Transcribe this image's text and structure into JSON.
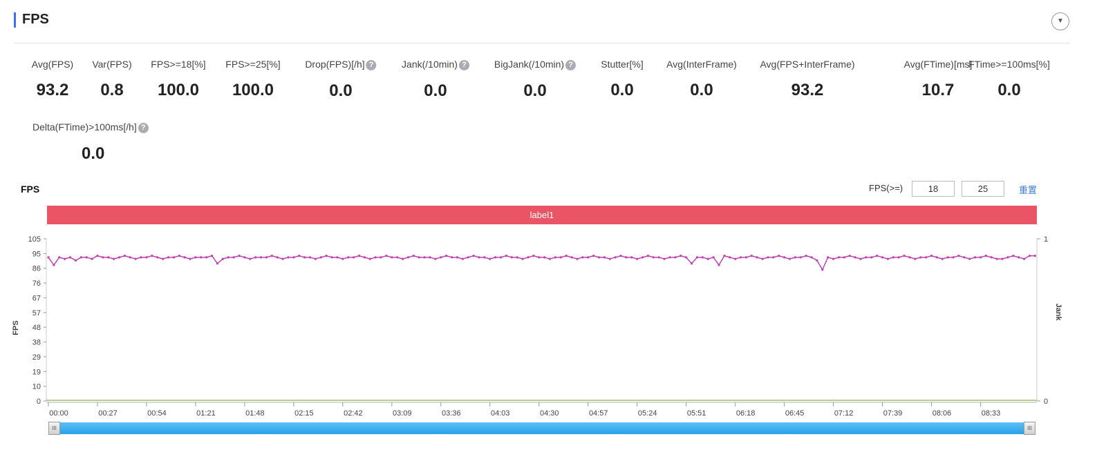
{
  "header": {
    "title": "FPS",
    "collapse_icon": "chevron-down-icon"
  },
  "metrics": [
    {
      "label": "Avg(FPS)",
      "value": "93.2",
      "help": false
    },
    {
      "label": "Var(FPS)",
      "value": "0.8",
      "help": false
    },
    {
      "label": "FPS>=18[%]",
      "value": "100.0",
      "help": false
    },
    {
      "label": "FPS>=25[%]",
      "value": "100.0",
      "help": false
    },
    {
      "label": "Drop(FPS)[/h]",
      "value": "0.0",
      "help": true
    },
    {
      "label": "Jank(/10min)",
      "value": "0.0",
      "help": true
    },
    {
      "label": "BigJank(/10min)",
      "value": "0.0",
      "help": true
    },
    {
      "label": "Stutter[%]",
      "value": "0.0",
      "help": false
    },
    {
      "label": "Avg(InterFrame)",
      "value": "0.0",
      "help": false
    },
    {
      "label": "Avg(FPS+InterFrame)",
      "value": "93.2",
      "help": false
    },
    {
      "label": "Avg(FTime)[ms]",
      "value": "10.7",
      "help": false
    },
    {
      "label": "FTime>=100ms[%]",
      "value": "0.0",
      "help": false
    },
    {
      "label": "Delta(FTime)>100ms[/h]",
      "value": "0.0",
      "help": true
    }
  ],
  "help_glyph": "?",
  "chart_header": {
    "title": "FPS",
    "threshold_label": "FPS(>=)",
    "threshold1": "18",
    "threshold2": "25",
    "reset_label": "重置"
  },
  "label_bar": {
    "text": "label1",
    "color": "#ea5565"
  },
  "chart_data": {
    "type": "line",
    "ylabel": "FPS",
    "y2label": "Jank",
    "ylim": [
      0,
      105
    ],
    "y2lim": [
      0,
      1
    ],
    "yticks": [
      "105",
      "95",
      "86",
      "76",
      "67",
      "57",
      "48",
      "38",
      "29",
      "19",
      "10",
      "0"
    ],
    "y2ticks": [
      "1",
      "0"
    ],
    "xticks": [
      "00:00",
      "00:27",
      "00:54",
      "01:21",
      "01:48",
      "02:15",
      "02:42",
      "03:09",
      "03:36",
      "04:03",
      "04:30",
      "04:57",
      "05:24",
      "05:51",
      "06:18",
      "06:45",
      "07:12",
      "07:39",
      "08:06",
      "08:33"
    ],
    "x_step_seconds": 3,
    "x_range_seconds": [
      0,
      544
    ],
    "series": [
      {
        "name": "FPS",
        "color": "#c040b0",
        "values": [
          93,
          88,
          93,
          92,
          93,
          91,
          93,
          93,
          92,
          94,
          93,
          93,
          92,
          93,
          94,
          93,
          92,
          93,
          93,
          94,
          93,
          92,
          93,
          93,
          94,
          93,
          92,
          93,
          93,
          93,
          94,
          89,
          92,
          93,
          93,
          94,
          93,
          92,
          93,
          93,
          93,
          94,
          93,
          92,
          93,
          93,
          94,
          93,
          93,
          92,
          93,
          94,
          93,
          93,
          92,
          93,
          93,
          94,
          93,
          92,
          93,
          93,
          94,
          93,
          93,
          92,
          93,
          94,
          93,
          93,
          93,
          92,
          93,
          94,
          93,
          93,
          92,
          93,
          94,
          93,
          93,
          92,
          93,
          93,
          94,
          93,
          93,
          92,
          93,
          94,
          93,
          93,
          92,
          93,
          93,
          94,
          93,
          92,
          93,
          93,
          94,
          93,
          93,
          92,
          93,
          94,
          93,
          93,
          92,
          93,
          94,
          93,
          93,
          92,
          93,
          93,
          94,
          93,
          89,
          93,
          93,
          92,
          93,
          88,
          94,
          93,
          92,
          93,
          93,
          94,
          93,
          92,
          93,
          93,
          94,
          93,
          92,
          93,
          93,
          94,
          93,
          91,
          85,
          93,
          92,
          93,
          93,
          94,
          93,
          92,
          93,
          93,
          94,
          93,
          92,
          93,
          93,
          94,
          93,
          92,
          93,
          93,
          94,
          93,
          92,
          93,
          93,
          94,
          93,
          92,
          93,
          93,
          94,
          93,
          92,
          92,
          93,
          94,
          93,
          92,
          94,
          94
        ]
      },
      {
        "name": "Jank",
        "color": "#a8b860",
        "values": [
          0
        ]
      }
    ]
  }
}
